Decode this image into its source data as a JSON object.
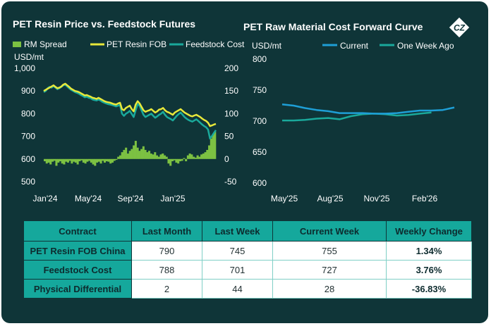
{
  "colors": {
    "background": "#0f3538",
    "spread": "#7cc142",
    "fob": "#e8e83a",
    "feedstock": "#1aa99b",
    "current": "#1e9fd6",
    "week_ago": "#1aa99b",
    "table_header": "#15a89c"
  },
  "logo_text": "CZ",
  "chart_data": [
    {
      "type": "line",
      "title": "PET Resin Price vs. Feedstock Futures",
      "ylabel": "USD/mt",
      "ylim": [
        500,
        1000
      ],
      "y2lim": [
        -50,
        200
      ],
      "y_ticks": [
        "500",
        "600",
        "700",
        "800",
        "900",
        "1,000"
      ],
      "y2_ticks": [
        "-50",
        "0",
        "50",
        "100",
        "150",
        "200"
      ],
      "x_ticks": [
        "Jan'24",
        "May'24",
        "Sep'24",
        "Jan'25"
      ],
      "legend": "top",
      "series": [
        {
          "name": "RM Spread",
          "axis": "right",
          "style": "bar",
          "values": [
            -5,
            -10,
            -8,
            -12,
            -6,
            -4,
            -15,
            -8,
            -5,
            -10,
            -12,
            -6,
            -8,
            -4,
            -10,
            -6,
            -8,
            -12,
            -5,
            -3,
            -8,
            -10,
            -6,
            -4,
            -8,
            -12,
            -15,
            -8,
            -6,
            -10,
            -4,
            -8,
            -5,
            -6,
            -10,
            -8,
            -4,
            -2,
            5,
            8,
            15,
            20,
            25,
            12,
            18,
            22,
            30,
            40,
            25,
            18,
            22,
            28,
            20,
            15,
            18,
            12,
            10,
            15,
            8,
            5,
            10,
            12,
            8,
            5,
            -10,
            -15,
            -5,
            -3,
            -8,
            -10,
            -5,
            -4,
            2,
            -5,
            8,
            12,
            10,
            5,
            3,
            8,
            5,
            10,
            12,
            15,
            20,
            30,
            45,
            55,
            60
          ]
        },
        {
          "name": "PET Resin FOB",
          "axis": "left",
          "values": [
            900,
            905,
            910,
            915,
            920,
            925,
            918,
            912,
            915,
            920,
            928,
            932,
            925,
            918,
            910,
            905,
            900,
            898,
            895,
            890,
            885,
            880,
            882,
            878,
            875,
            870,
            868,
            865,
            870,
            865,
            860,
            855,
            852,
            850,
            848,
            845,
            842,
            840,
            845,
            848,
            820,
            815,
            825,
            830,
            835,
            820,
            810,
            840,
            855,
            845,
            830,
            815,
            808,
            812,
            815,
            820,
            812,
            805,
            810,
            818,
            820,
            825,
            815,
            808,
            805,
            800,
            795,
            805,
            810,
            815,
            820,
            812,
            805,
            800,
            795,
            790,
            788,
            792,
            795,
            790,
            785,
            778,
            772,
            768,
            760,
            745,
            748,
            752,
            755
          ]
        },
        {
          "name": "Feedstock Cost",
          "axis": "left",
          "values": [
            895,
            900,
            912,
            918,
            915,
            922,
            915,
            908,
            912,
            918,
            925,
            928,
            920,
            912,
            905,
            900,
            895,
            892,
            888,
            882,
            878,
            872,
            875,
            870,
            868,
            862,
            860,
            858,
            862,
            858,
            852,
            848,
            845,
            842,
            840,
            838,
            835,
            832,
            835,
            838,
            800,
            790,
            800,
            805,
            812,
            798,
            785,
            815,
            842,
            835,
            815,
            795,
            785,
            790,
            795,
            800,
            790,
            782,
            788,
            795,
            800,
            808,
            795,
            785,
            780,
            776,
            770,
            780,
            790,
            798,
            805,
            795,
            785,
            778,
            772,
            768,
            765,
            770,
            775,
            768,
            760,
            752,
            745,
            740,
            730,
            690,
            702,
            715,
            727
          ]
        }
      ]
    },
    {
      "type": "line",
      "title": "PET Raw Material Cost Forward Curve",
      "ylabel": "USD/mt",
      "ylim": [
        600,
        800
      ],
      "y_ticks": [
        "600",
        "650",
        "700",
        "750",
        "800"
      ],
      "x_ticks": [
        "May'25",
        "Aug'25",
        "Nov'25",
        "Feb'26"
      ],
      "legend": "top",
      "series": [
        {
          "name": "Current",
          "values": [
            727,
            725,
            721,
            718,
            716,
            713,
            713,
            713,
            712,
            712,
            713,
            715,
            717,
            717,
            718,
            722
          ]
        },
        {
          "name": "One Week Ago",
          "values": [
            701,
            701,
            702,
            704,
            705,
            703,
            708,
            711,
            712,
            711,
            709,
            710,
            712,
            714
          ]
        }
      ]
    }
  ],
  "table": {
    "headers": [
      "Contract",
      "Last Month",
      "Last Week",
      "Current Week",
      "Weekly Change"
    ],
    "rows": [
      [
        "PET Resin FOB China",
        "790",
        "745",
        "755",
        "1.34%"
      ],
      [
        "Feedstock Cost",
        "788",
        "701",
        "727",
        "3.76%"
      ],
      [
        "Physical Differential",
        "2",
        "44",
        "28",
        "-36.83%"
      ]
    ]
  }
}
